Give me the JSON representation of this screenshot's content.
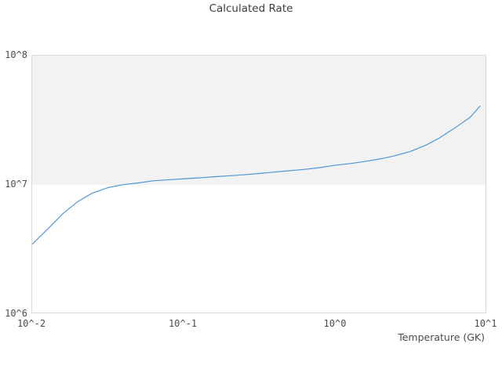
{
  "colors": {
    "background": "#ffffff",
    "band": "#f2f2f2",
    "plot_border": "#d9d9d9",
    "line": "#4e96d6",
    "title_text": "#3d3d3d",
    "tick_text": "#4c4c4c"
  },
  "chart_data": {
    "type": "line",
    "title": "Calculated Rate",
    "xlabel": "Temperature (GK)",
    "ylabel": "",
    "x_scale": "log",
    "y_scale": "log",
    "xlim": [
      0.01,
      10
    ],
    "ylim": [
      1000000,
      100000000
    ],
    "x_tick_labels": [
      "10^-2",
      "10^-1",
      "10^0",
      "10^1"
    ],
    "y_tick_labels": [
      "10^6",
      "10^7",
      "10^8"
    ],
    "grid": "off",
    "legend": "none",
    "shaded_band_y": [
      10000000,
      100000000
    ],
    "series": [
      {
        "name": "calculated-rate",
        "color": "#4e96d6",
        "x": [
          0.01,
          0.013,
          0.016,
          0.02,
          0.025,
          0.032,
          0.04,
          0.05,
          0.063,
          0.079,
          0.1,
          0.13,
          0.16,
          0.2,
          0.25,
          0.32,
          0.4,
          0.5,
          0.63,
          0.79,
          1.0,
          1.3,
          1.6,
          2.0,
          2.5,
          3.2,
          4.0,
          5.0,
          6.3,
          7.9,
          9.2
        ],
        "y": [
          3400000.0,
          4600000.0,
          5900000.0,
          7300000.0,
          8500000.0,
          9400000.0,
          9900000.0,
          10200000.0,
          10600000.0,
          10800000.0,
          11000000.0,
          11200000.0,
          11400000.0,
          11600000.0,
          11800000.0,
          12100000.0,
          12400000.0,
          12700000.0,
          13000000.0,
          13400000.0,
          14000000.0,
          14500000.0,
          15000000.0,
          15700000.0,
          16600000.0,
          18000000.0,
          20000000.0,
          23000000.0,
          27500000.0,
          33000000.0,
          40500000.0
        ]
      }
    ]
  }
}
